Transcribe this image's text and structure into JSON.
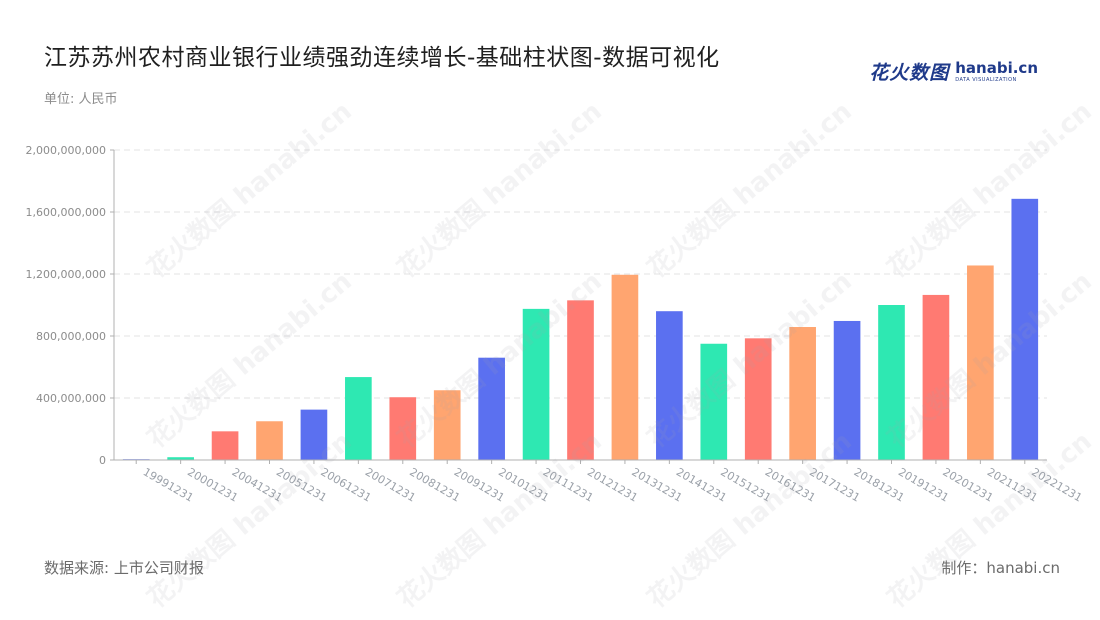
{
  "title": "江苏苏州农村商业银行业绩强劲连续增长-基础柱状图-数据可视化",
  "unit_label": "单位: 人民币",
  "logo": {
    "cn": "花火数图",
    "en": "hanabi.cn",
    "sub": "DATA VISUALIZATION"
  },
  "footer": {
    "source": "数据来源: 上市公司财报",
    "maker": "制作：hanabi.cn"
  },
  "watermark_text": "花火数图 hanabi.cn",
  "colors": {
    "palette": [
      "#5b70f0",
      "#2ee8b2",
      "#ff7a72",
      "#ffa570"
    ],
    "grid": "#e3e3e3",
    "axis": "#b0b0b0"
  },
  "chart_data": {
    "type": "bar",
    "categories": [
      "19991231",
      "20001231",
      "20041231",
      "20051231",
      "20061231",
      "20071231",
      "20081231",
      "20091231",
      "20101231",
      "20111231",
      "20121231",
      "20131231",
      "20141231",
      "20151231",
      "20161231",
      "20171231",
      "20181231",
      "20191231",
      "20201231",
      "20211231",
      "20221231"
    ],
    "values": [
      5000000,
      18000000,
      185000000,
      250000000,
      325000000,
      535000000,
      405000000,
      450000000,
      660000000,
      975000000,
      1030000000,
      1195000000,
      960000000,
      750000000,
      785000000,
      858000000,
      897000000,
      1000000000,
      1065000000,
      1255000000,
      1685000000
    ],
    "ylim": [
      0,
      2000000000
    ],
    "yticks": [
      "0",
      "400,000,000",
      "800,000,000",
      "1,200,000,000",
      "1,600,000,000",
      "2,000,000,000"
    ],
    "ytick_values": [
      0,
      400000000,
      800000000,
      1200000000,
      1600000000,
      2000000000
    ],
    "grid": true,
    "legend": "none"
  }
}
